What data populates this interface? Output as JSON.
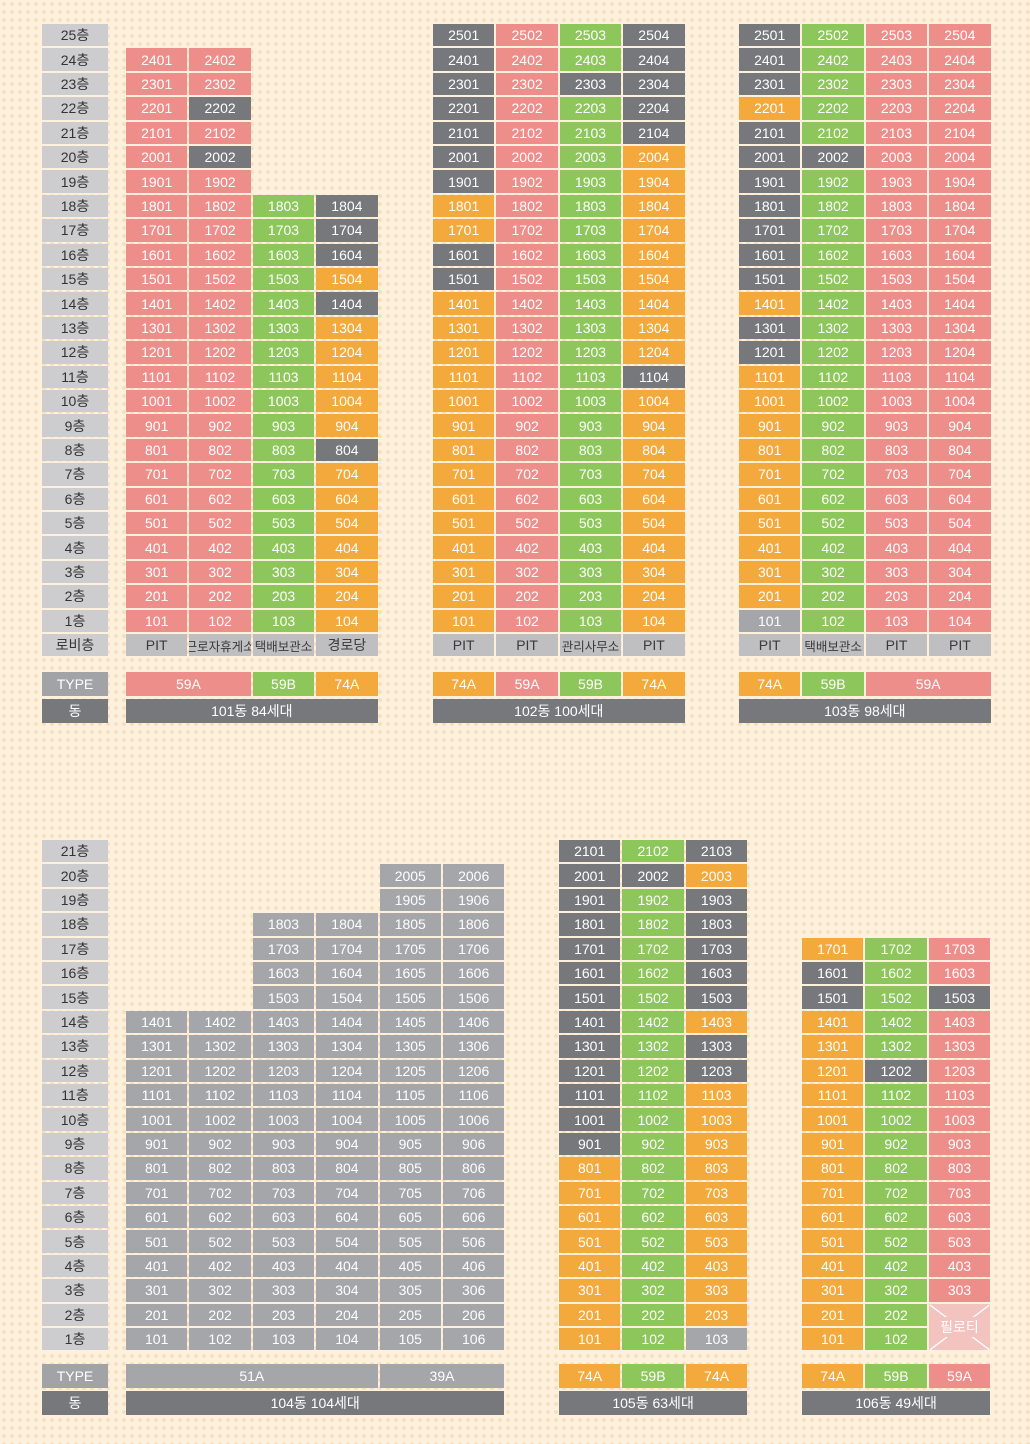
{
  "labels": {
    "type": "TYPE",
    "dong": "동",
    "lobby": "로비층"
  },
  "colors": {
    "pink": "#ee8e8b",
    "green": "#8dc75b",
    "orange": "#f4a93c",
    "dark": "#77787c",
    "light": "#a5a6aa"
  },
  "top_floors": [
    "25층",
    "24층",
    "23층",
    "22층",
    "21층",
    "20층",
    "19층",
    "18층",
    "17층",
    "16층",
    "15층",
    "14층",
    "13층",
    "12층",
    "11층",
    "10층",
    "9층",
    "8층",
    "7층",
    "6층",
    "5층",
    "4층",
    "3층",
    "2층",
    "1층"
  ],
  "bottom_floors": [
    "21층",
    "20층",
    "19층",
    "18층",
    "17층",
    "16층",
    "15층",
    "14층",
    "13층",
    "12층",
    "11층",
    "10층",
    "9층",
    "8층",
    "7층",
    "6층",
    "5층",
    "4층",
    "3층",
    "2층",
    "1층"
  ],
  "buildings": [
    {
      "id": "101",
      "dong_label": "101동 84세대",
      "columns": [
        {
          "lines": 1,
          "top": 24,
          "code": "ppppppppppppppppppppppppp",
          "lobby": "PIT",
          "type": "59A"
        },
        {
          "lines": 2,
          "top": 24,
          "code": "ppdpdppppppppppppppppppp",
          "lobby": "근로자휴게소",
          "type": ""
        },
        {
          "lines": 3,
          "top": 18,
          "code": "gggggggggggggggggg",
          "lobby": "택배보관소",
          "type": "59B"
        },
        {
          "lines": 4,
          "top": 18,
          "code": "dddodooooodoooooooo",
          "lobby": "경로당",
          "type": "74A"
        }
      ],
      "types": [
        {
          "label": "59A",
          "span": 2,
          "color": "pink"
        },
        {
          "label": "59B",
          "span": 1,
          "color": "green"
        },
        {
          "label": "74A",
          "span": 1,
          "color": "orange"
        }
      ]
    },
    {
      "id": "102",
      "dong_label": "102동 100세대",
      "columns": [
        {
          "lines": 1,
          "top": 25,
          "code": "dddddddooddoooooooooooooo",
          "lobby": "PIT"
        },
        {
          "lines": 2,
          "top": 25,
          "code": "ppppppppppppppppppppppppp",
          "lobby": "PIT"
        },
        {
          "lines": 3,
          "top": 25,
          "code": "ggdggggggggggggggggggggggg",
          "lobby": "관리사무소"
        },
        {
          "lines": 4,
          "top": 25,
          "code": "dddddooooooooodoooooooooo",
          "lobby": "PIT"
        }
      ],
      "types": [
        {
          "label": "74A",
          "span": 1,
          "color": "orange"
        },
        {
          "label": "59A",
          "span": 1,
          "color": "pink"
        },
        {
          "label": "59B",
          "span": 1,
          "color": "green"
        },
        {
          "label": "74A",
          "span": 1,
          "color": "orange"
        }
      ]
    },
    {
      "id": "103",
      "dong_label": "103동 98세대",
      "columns": [
        {
          "lines": 1,
          "top": 25,
          "code": "dddodddddddoddooooooooooll",
          "lobby": "PIT"
        },
        {
          "lines": 2,
          "top": 25,
          "code": "gggggdgggggggggggggggggggg",
          "lobby": "택배보관소"
        },
        {
          "lines": 3,
          "top": 25,
          "code": "ppppppppppppppppppppppppp",
          "lobby": "PIT"
        },
        {
          "lines": 4,
          "top": 25,
          "code": "ppppppppppppppppppppppppp",
          "lobby": "PIT"
        }
      ],
      "types": [
        {
          "label": "74A",
          "span": 1,
          "color": "orange"
        },
        {
          "label": "59B",
          "span": 1,
          "color": "green"
        },
        {
          "label": "59A",
          "span": 2,
          "color": "pink"
        }
      ]
    },
    {
      "id": "104",
      "dong_label": "104동 104세대",
      "columns": [
        {
          "lines": 1,
          "top": 14,
          "code": "llllllllllllll"
        },
        {
          "lines": 2,
          "top": 14,
          "code": "llllllllllllll"
        },
        {
          "lines": 3,
          "top": 18,
          "code": "llllllllllllllllll"
        },
        {
          "lines": 4,
          "top": 18,
          "code": "llllllllllllllllll"
        },
        {
          "lines": 5,
          "top": 20,
          "code": "llllllllllllllllllll"
        },
        {
          "lines": 6,
          "top": 20,
          "code": "llllllllllllllllllll"
        }
      ],
      "types": [
        {
          "label": "51A",
          "span": 4,
          "color": "light"
        },
        {
          "label": "39A",
          "span": 2,
          "color": "light"
        }
      ]
    },
    {
      "id": "105",
      "dong_label": "105동 63세대",
      "columns": [
        {
          "lines": 1,
          "top": 21,
          "code": "dddddddddddddoooooooo"
        },
        {
          "lines": 2,
          "top": 21,
          "code": "gdggggggggggggggggggg"
        },
        {
          "lines": 3,
          "top": 21,
          "code": "dodddddoddoooooooooo"
        }
      ],
      "types": [
        {
          "label": "74A",
          "span": 1,
          "color": "orange"
        },
        {
          "label": "59B",
          "span": 1,
          "color": "green"
        },
        {
          "label": "74A",
          "span": 1,
          "color": "orange"
        }
      ]
    },
    {
      "id": "106",
      "dong_label": "106동 49세대",
      "columns": [
        {
          "lines": 1,
          "top": 17,
          "code": "oddoooooooooooooo"
        },
        {
          "lines": 2,
          "top": 17,
          "code": "gggggdggggggggggg"
        },
        {
          "lines": 3,
          "top": 17,
          "code": "ppdppppppppppppp"
        }
      ],
      "types": [
        {
          "label": "74A",
          "span": 1,
          "color": "orange"
        },
        {
          "label": "59B",
          "span": 1,
          "color": "green"
        },
        {
          "label": "59A",
          "span": 1,
          "color": "pink"
        }
      ],
      "pilotis_label": "필로티"
    }
  ]
}
